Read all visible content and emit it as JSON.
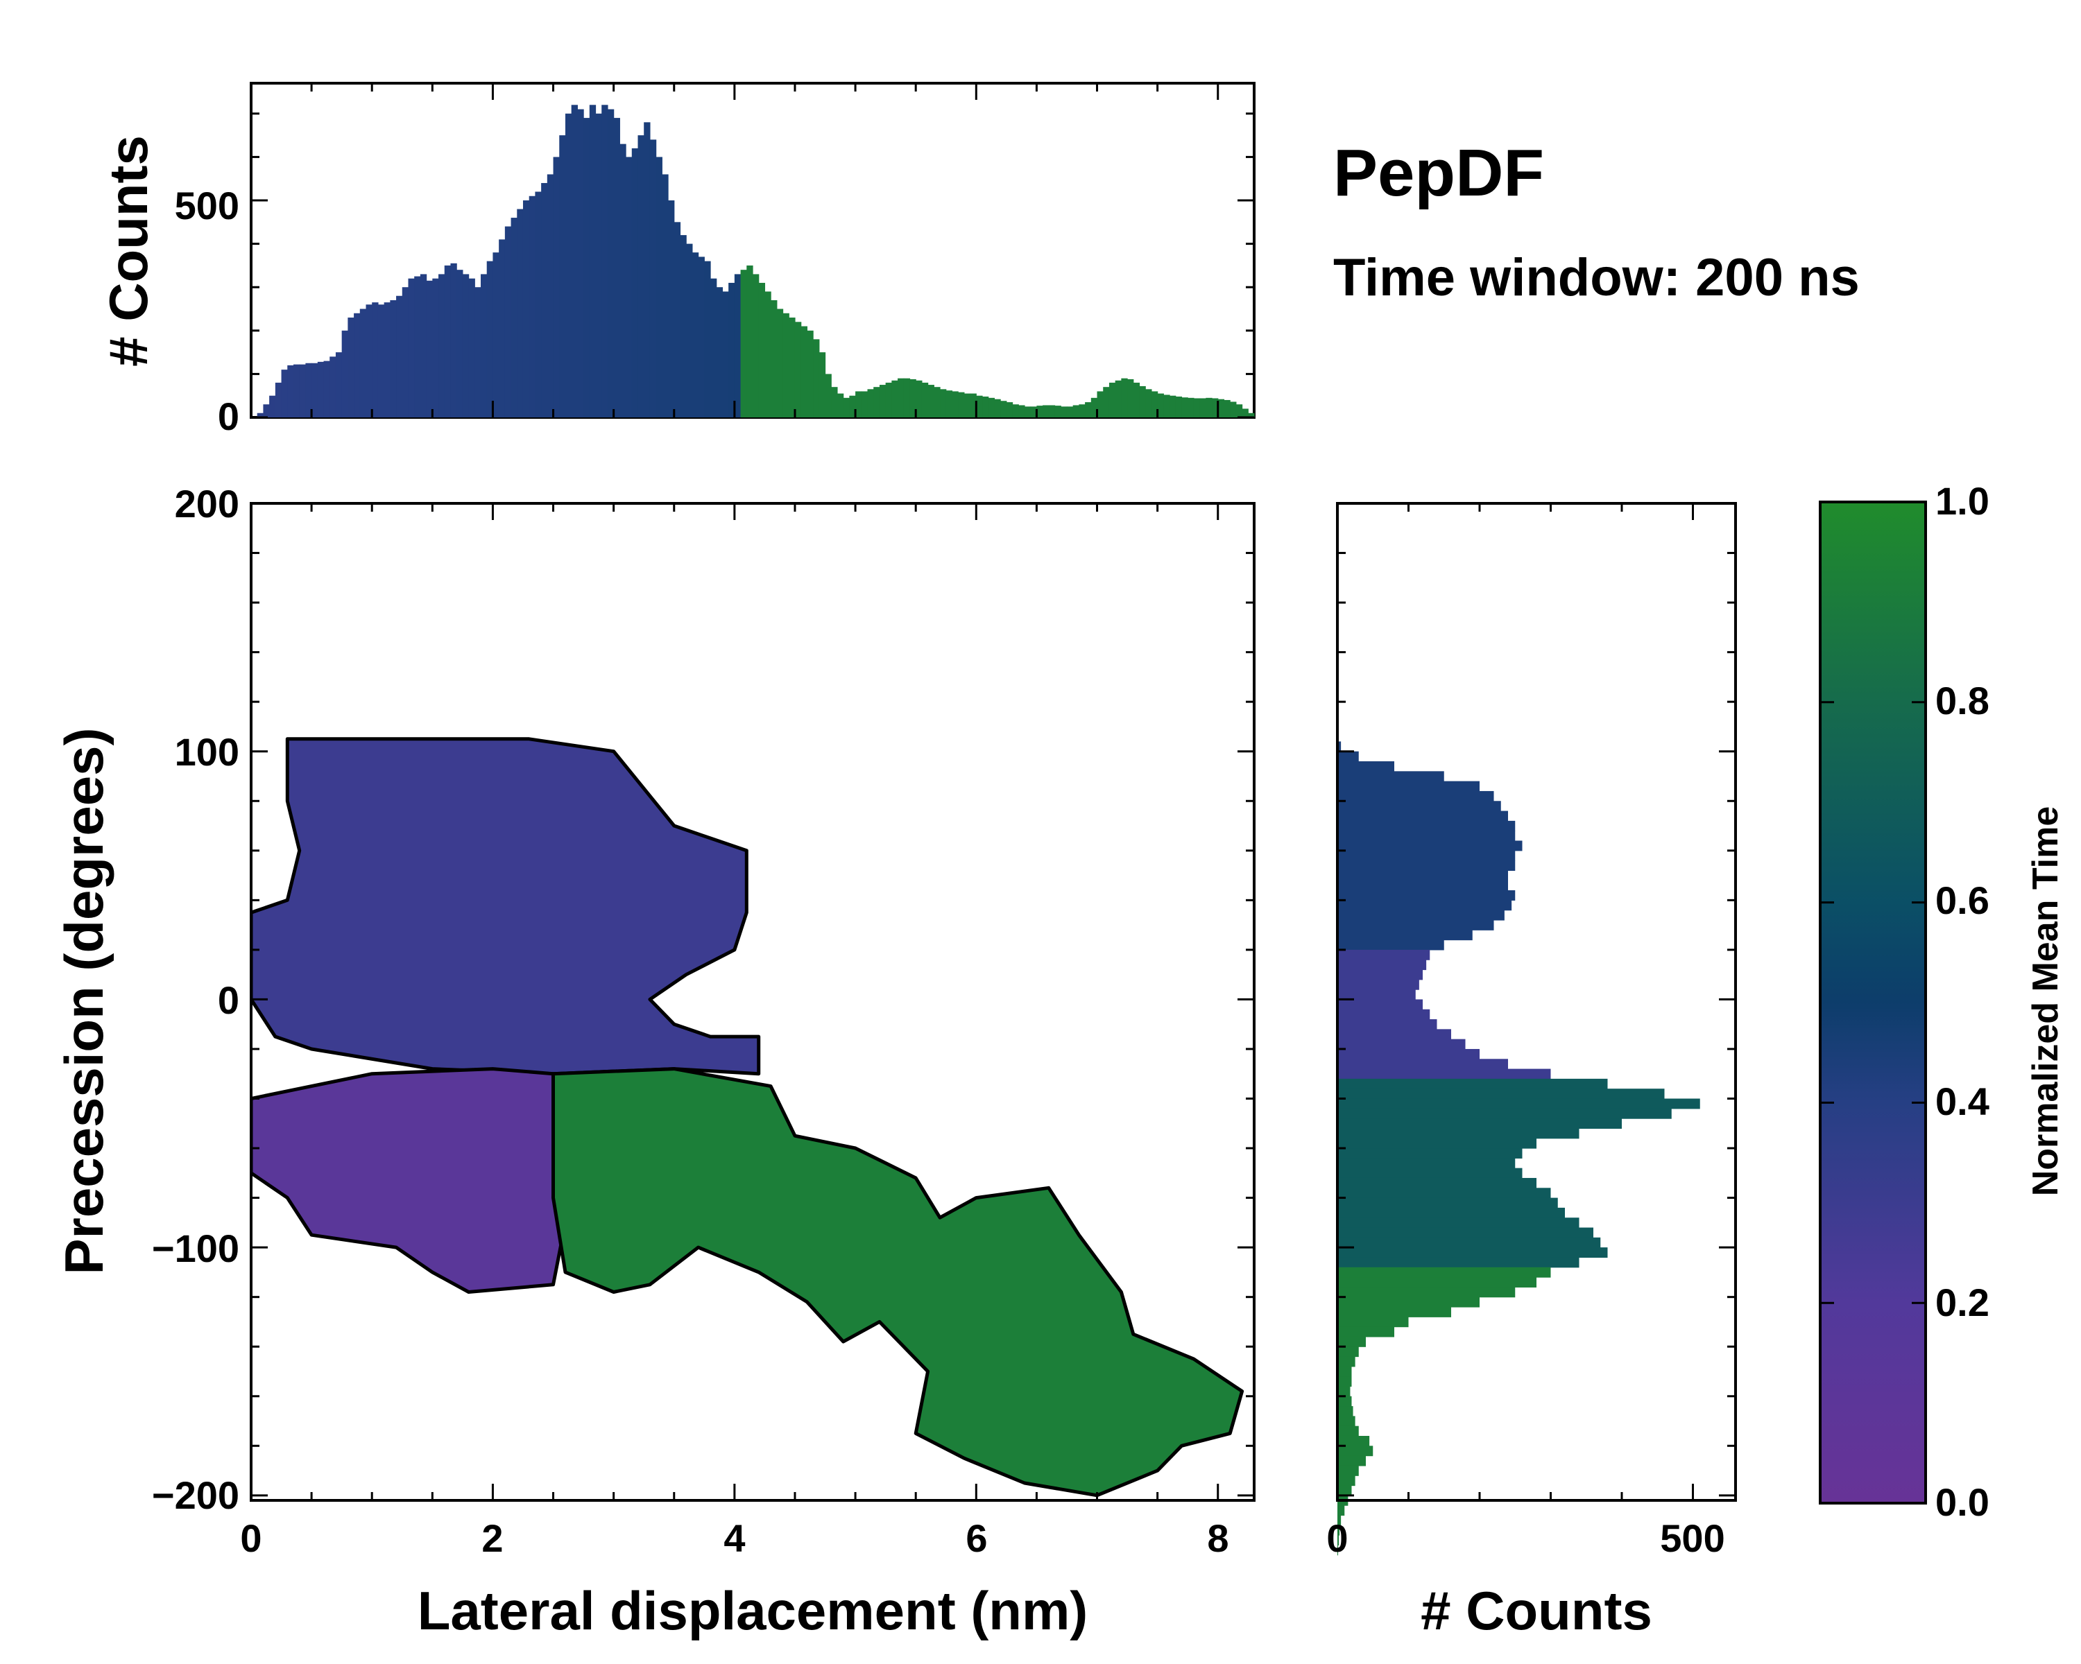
{
  "chart_data": {
    "type": "heatmap",
    "title": "PepDF",
    "subtitle": "Time window: 200 ns",
    "main": {
      "xlabel": "Lateral displacement (nm)",
      "ylabel": "Precession (degrees)",
      "xlim": [
        0,
        8.3
      ],
      "ylim": [
        -202,
        200
      ],
      "xticks": [
        0,
        2,
        4,
        6,
        8
      ],
      "xtick_labels": [
        "0",
        "2",
        "4",
        "6",
        "8"
      ],
      "yticks": [
        200,
        100,
        0,
        -100,
        -200
      ],
      "ytick_labels": [
        "200",
        "100",
        "0",
        "−100",
        "−200"
      ],
      "regions": [
        {
          "name": "purple-blue region",
          "color_value": 0.3,
          "points": [
            [
              0.3,
              105
            ],
            [
              2.3,
              105
            ],
            [
              3.0,
              100
            ],
            [
              3.5,
              70
            ],
            [
              4.1,
              60
            ],
            [
              4.1,
              35
            ],
            [
              4.0,
              20
            ],
            [
              3.6,
              10
            ],
            [
              3.3,
              0
            ],
            [
              3.5,
              -10
            ],
            [
              3.8,
              -15
            ],
            [
              4.2,
              -15
            ],
            [
              4.2,
              -30
            ],
            [
              3.5,
              -28
            ],
            [
              2.5,
              -30
            ],
            [
              1.5,
              -28
            ],
            [
              0.5,
              -20
            ],
            [
              0.2,
              -15
            ],
            [
              0,
              0
            ],
            [
              0,
              35
            ],
            [
              0.3,
              40
            ],
            [
              0.4,
              60
            ],
            [
              0.3,
              80
            ]
          ]
        },
        {
          "name": "purple region",
          "color_value": 0.12,
          "points": [
            [
              0,
              -40
            ],
            [
              0.5,
              -35
            ],
            [
              1.0,
              -30
            ],
            [
              2.0,
              -28
            ],
            [
              2.5,
              -30
            ],
            [
              2.5,
              -60
            ],
            [
              2.6,
              -90
            ],
            [
              2.5,
              -115
            ],
            [
              1.8,
              -118
            ],
            [
              1.5,
              -110
            ],
            [
              1.2,
              -100
            ],
            [
              0.5,
              -95
            ],
            [
              0.3,
              -80
            ],
            [
              0,
              -70
            ]
          ]
        },
        {
          "name": "green region",
          "color_value": 0.92,
          "points": [
            [
              2.5,
              -30
            ],
            [
              3.5,
              -28
            ],
            [
              4.3,
              -35
            ],
            [
              4.5,
              -55
            ],
            [
              5.0,
              -60
            ],
            [
              5.5,
              -72
            ],
            [
              5.7,
              -88
            ],
            [
              6.0,
              -80
            ],
            [
              6.6,
              -76
            ],
            [
              6.85,
              -95
            ],
            [
              7.2,
              -118
            ],
            [
              7.3,
              -135
            ],
            [
              7.8,
              -145
            ],
            [
              8.2,
              -158
            ],
            [
              8.1,
              -175
            ],
            [
              7.7,
              -180
            ],
            [
              7.5,
              -190
            ],
            [
              7.0,
              -200
            ],
            [
              6.4,
              -195
            ],
            [
              5.9,
              -185
            ],
            [
              5.5,
              -175
            ],
            [
              5.6,
              -150
            ],
            [
              5.2,
              -130
            ],
            [
              4.9,
              -138
            ],
            [
              4.6,
              -122
            ],
            [
              4.2,
              -110
            ],
            [
              3.7,
              -100
            ],
            [
              3.3,
              -115
            ],
            [
              3.0,
              -118
            ],
            [
              2.6,
              -110
            ],
            [
              2.5,
              -80
            ]
          ]
        }
      ]
    },
    "top_histogram": {
      "ylabel": "# Counts",
      "ylim": [
        0,
        770
      ],
      "yticks": [
        0,
        500
      ],
      "ytick_labels": [
        "0",
        "500"
      ],
      "bin_start": 0,
      "bin_width": 0.05,
      "values": [
        0,
        10,
        30,
        50,
        80,
        110,
        120,
        122,
        122,
        125,
        125,
        128,
        130,
        140,
        150,
        200,
        230,
        240,
        250,
        260,
        265,
        260,
        265,
        270,
        280,
        300,
        320,
        325,
        330,
        315,
        320,
        330,
        350,
        355,
        340,
        330,
        320,
        300,
        330,
        360,
        380,
        410,
        440,
        460,
        480,
        500,
        510,
        520,
        540,
        560,
        600,
        650,
        700,
        720,
        710,
        690,
        720,
        700,
        720,
        710,
        690,
        630,
        600,
        620,
        650,
        680,
        640,
        600,
        560,
        500,
        450,
        420,
        400,
        380,
        370,
        360,
        320,
        300,
        290,
        310,
        330,
        340,
        350,
        330,
        310,
        290,
        270,
        250,
        240,
        230,
        220,
        210,
        200,
        180,
        150,
        100,
        70,
        55,
        45,
        50,
        60,
        60,
        65,
        70,
        75,
        80,
        85,
        90,
        90,
        88,
        85,
        80,
        75,
        70,
        65,
        62,
        60,
        58,
        55,
        55,
        50,
        48,
        45,
        42,
        38,
        35,
        30,
        28,
        25,
        25,
        27,
        28,
        28,
        27,
        25,
        25,
        28,
        30,
        35,
        45,
        60,
        70,
        80,
        85,
        90,
        88,
        80,
        72,
        65,
        60,
        55,
        52,
        50,
        48,
        46,
        45,
        44,
        44,
        45,
        44,
        42,
        40,
        36,
        30,
        20,
        10,
        0
      ]
    },
    "right_histogram": {
      "xlabel": "# Counts",
      "xlim": [
        0,
        560
      ],
      "xticks": [
        0,
        500
      ],
      "xtick_labels": [
        "0",
        "500"
      ],
      "bin_top": 104,
      "bin_height": 4,
      "values": [
        5,
        30,
        80,
        150,
        200,
        220,
        230,
        240,
        250,
        250,
        260,
        250,
        250,
        240,
        240,
        250,
        245,
        235,
        220,
        190,
        150,
        130,
        125,
        120,
        115,
        110,
        120,
        130,
        140,
        160,
        180,
        200,
        240,
        300,
        380,
        460,
        510,
        470,
        400,
        340,
        280,
        260,
        250,
        260,
        280,
        300,
        310,
        320,
        340,
        360,
        370,
        380,
        340,
        300,
        280,
        250,
        200,
        160,
        100,
        80,
        40,
        30,
        25,
        20,
        20,
        18,
        20,
        22,
        25,
        30,
        45,
        50,
        40,
        30,
        25,
        20,
        15,
        10,
        5,
        3,
        2,
        1
      ]
    },
    "colorbar": {
      "label": "Normalized Mean Time",
      "range": [
        0.0,
        1.0
      ],
      "ticks": [
        0.0,
        0.2,
        0.4,
        0.6,
        0.8,
        1.0
      ],
      "tick_labels": [
        "0.0",
        "0.2",
        "0.4",
        "0.6",
        "0.8",
        "1.0"
      ],
      "stops": [
        {
          "offset": 0.0,
          "color": "#673397"
        },
        {
          "offset": 0.2,
          "color": "#52399b"
        },
        {
          "offset": 0.4,
          "color": "#263f84"
        },
        {
          "offset": 0.5,
          "color": "#0d3d6b"
        },
        {
          "offset": 0.6,
          "color": "#0b4f66"
        },
        {
          "offset": 0.8,
          "color": "#166b4c"
        },
        {
          "offset": 1.0,
          "color": "#208c2c"
        }
      ]
    }
  }
}
